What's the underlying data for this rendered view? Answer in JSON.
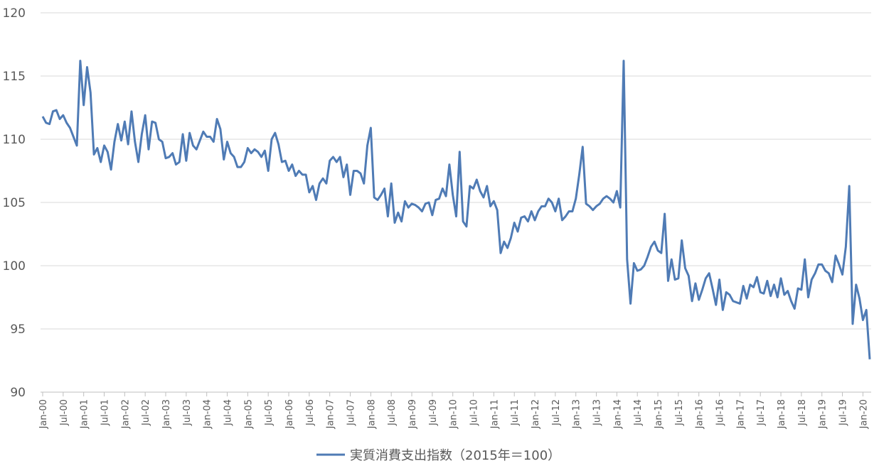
{
  "chart_data": {
    "type": "line",
    "ylim": [
      90,
      120
    ],
    "y_ticks": [
      90,
      95,
      100,
      105,
      110,
      115,
      120
    ],
    "grid": true,
    "legend_position": "bottom",
    "color": "#4f7bb5",
    "x_tick_labels": [
      "Jan-00",
      "Jul-00",
      "Jan-01",
      "Jul-01",
      "Jan-02",
      "Jul-02",
      "Jan-03",
      "Jul-03",
      "Jan-04",
      "Jul-04",
      "Jan-05",
      "Jul-05",
      "Jan-06",
      "Jul-06",
      "Jan-07",
      "Jul-07",
      "Jan-08",
      "Jul-08",
      "Jan-09",
      "Jul-09",
      "Jan-10",
      "Jul-10",
      "Jan-11",
      "Jul-11",
      "Jan-12",
      "Jul-12",
      "Jan-13",
      "Jul-13",
      "Jan-14",
      "Jul-14",
      "Jan-15",
      "Jul-15",
      "Jan-16",
      "Jul-16",
      "Jan-17",
      "Jul-17",
      "Jan-18",
      "Jul-18",
      "Jan-19",
      "Jul-19",
      "Jan-20"
    ],
    "series": [
      {
        "name": "実質消費支出指数（2015年＝100）",
        "x_start": "Jan-00",
        "x_step": "month",
        "values": [
          111.8,
          111.3,
          111.2,
          112.2,
          112.3,
          111.6,
          111.9,
          111.3,
          110.9,
          110.2,
          109.5,
          116.2,
          112.7,
          115.7,
          113.7,
          108.8,
          109.3,
          108.2,
          109.5,
          109.0,
          107.6,
          109.8,
          111.2,
          109.9,
          111.4,
          109.6,
          112.2,
          109.8,
          108.2,
          110.4,
          111.9,
          109.2,
          111.4,
          111.3,
          110.0,
          109.8,
          108.5,
          108.6,
          108.9,
          108.0,
          108.2,
          110.4,
          108.3,
          110.5,
          109.5,
          109.2,
          109.9,
          110.6,
          110.2,
          110.2,
          109.8,
          111.6,
          110.8,
          108.4,
          109.8,
          108.9,
          108.6,
          107.8,
          107.8,
          108.2,
          109.3,
          108.9,
          109.2,
          109.0,
          108.6,
          109.1,
          107.5,
          110.0,
          110.5,
          109.6,
          108.2,
          108.3,
          107.5,
          108.0,
          107.1,
          107.5,
          107.2,
          107.2,
          105.8,
          106.3,
          105.2,
          106.5,
          106.9,
          106.5,
          108.3,
          108.6,
          108.2,
          108.6,
          107.0,
          108.0,
          105.6,
          107.5,
          107.5,
          107.3,
          106.5,
          109.5,
          110.9,
          105.4,
          105.2,
          105.6,
          106.1,
          103.9,
          106.5,
          103.4,
          104.2,
          103.5,
          105.1,
          104.6,
          104.9,
          104.8,
          104.6,
          104.3,
          104.9,
          105.0,
          104.0,
          105.2,
          105.3,
          106.1,
          105.5,
          108.0,
          105.6,
          103.9,
          109.0,
          103.5,
          103.1,
          106.3,
          106.1,
          106.8,
          105.9,
          105.4,
          106.3,
          104.7,
          105.1,
          104.4,
          101.0,
          101.9,
          101.4,
          102.2,
          103.4,
          102.7,
          103.8,
          103.9,
          103.5,
          104.3,
          103.6,
          104.3,
          104.7,
          104.7,
          105.3,
          105.0,
          104.3,
          105.3,
          103.6,
          103.9,
          104.3,
          104.3,
          105.3,
          107.2,
          109.4,
          104.9,
          104.7,
          104.4,
          104.7,
          104.9,
          105.3,
          105.5,
          105.3,
          105.0,
          105.9,
          104.6,
          116.2,
          100.5,
          97.0,
          100.2,
          99.6,
          99.7,
          100.0,
          100.7,
          101.5,
          101.9,
          101.2,
          101.0,
          104.1,
          98.8,
          100.5,
          98.9,
          99.0,
          102.0,
          99.8,
          99.2,
          97.2,
          98.6,
          97.3,
          98.1,
          99.0,
          99.4,
          98.2,
          96.9,
          98.9,
          96.5,
          97.9,
          97.7,
          97.2,
          97.1,
          97.0,
          98.4,
          97.4,
          98.5,
          98.3,
          99.1,
          97.9,
          97.8,
          98.8,
          97.6,
          98.5,
          97.5,
          99.0,
          97.7,
          98.0,
          97.2,
          96.6,
          98.2,
          98.1,
          100.5,
          97.5,
          98.9,
          99.4,
          100.1,
          100.1,
          99.6,
          99.4,
          98.7,
          100.8,
          100.1,
          99.3,
          101.5,
          106.3,
          95.4,
          98.5,
          97.4,
          95.7,
          96.5,
          92.6
        ]
      }
    ]
  }
}
